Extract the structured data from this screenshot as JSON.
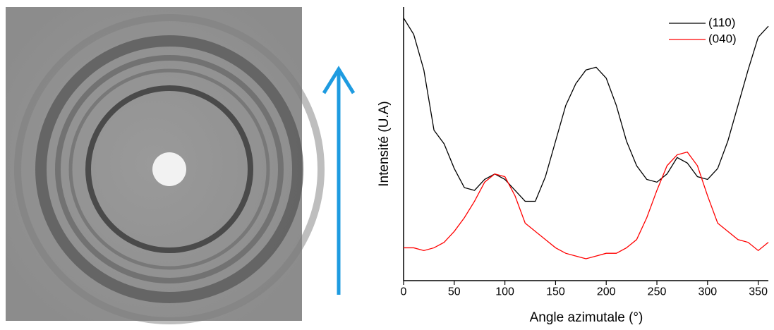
{
  "chart_data": {
    "type": "line",
    "xlabel": "Angle azimutale (°)",
    "ylabel": "Intensité (U.A)",
    "x": [
      0,
      10,
      20,
      30,
      40,
      50,
      60,
      70,
      80,
      90,
      100,
      110,
      120,
      130,
      140,
      150,
      160,
      170,
      180,
      190,
      200,
      210,
      220,
      230,
      240,
      250,
      260,
      270,
      280,
      290,
      300,
      310,
      320,
      330,
      340,
      350,
      360
    ],
    "series": [
      {
        "name": "(110)",
        "color": "#000000",
        "values": [
          96,
          90,
          77,
          55,
          50,
          41,
          34,
          33,
          37,
          39,
          37,
          33,
          29,
          29,
          38,
          51,
          64,
          72,
          77,
          78,
          74,
          64,
          51,
          42,
          37,
          36,
          39,
          45,
          43,
          38,
          37,
          41,
          51,
          64,
          77,
          89,
          93
        ]
      },
      {
        "name": "(040)",
        "color": "#ff0000",
        "values": [
          12,
          12,
          11,
          12,
          14,
          18,
          23,
          29,
          36,
          39,
          38,
          31,
          21,
          18,
          15,
          12,
          10,
          9,
          8,
          9,
          10,
          10,
          12,
          15,
          23,
          33,
          42,
          46,
          47,
          42,
          31,
          21,
          18,
          15,
          14,
          11,
          14
        ]
      }
    ],
    "xlim": [
      0,
      360
    ],
    "xticks": [
      0,
      50,
      100,
      150,
      200,
      250,
      300,
      350
    ],
    "ylim": [
      0,
      100
    ],
    "legend": "upper right"
  }
}
